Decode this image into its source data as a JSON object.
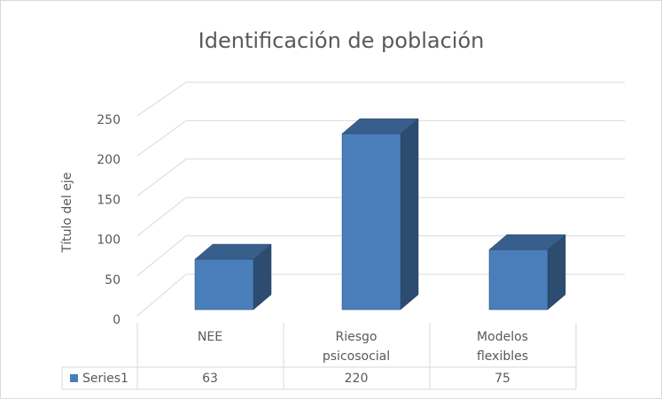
{
  "chart_data": {
    "type": "bar3d",
    "title": "Identificación de población",
    "y_label": "Título del eje",
    "categories": [
      "NEE",
      "Riesgo psicosocial",
      "Modelos flexibles"
    ],
    "series": [
      {
        "name": "Series1",
        "color": "#4a7ebb",
        "values": [
          63,
          220,
          75
        ]
      }
    ],
    "ylim": [
      0,
      250
    ],
    "yticks": [
      0,
      50,
      100,
      150,
      200,
      250
    ],
    "grid": true,
    "data_table": true
  }
}
